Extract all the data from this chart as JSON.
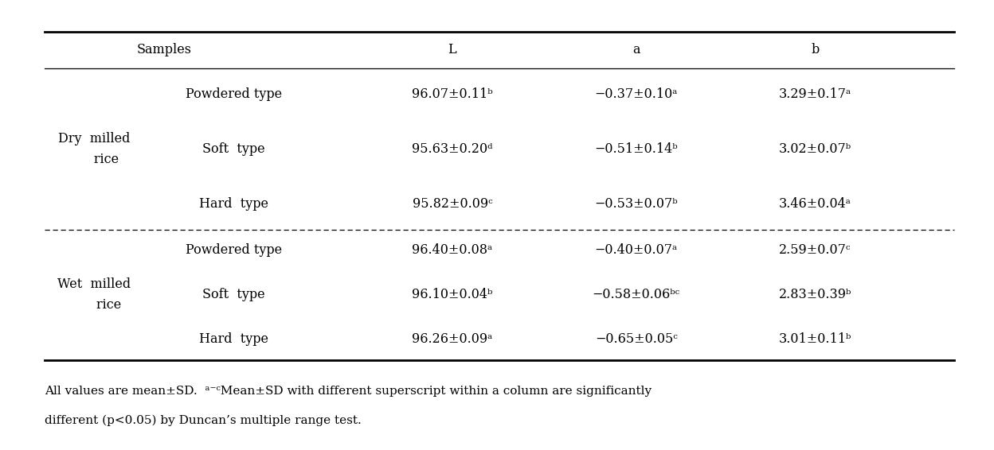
{
  "headers": [
    "Samples",
    "L",
    "a",
    "b"
  ],
  "col2_labels": [
    "Powdered type",
    "Soft  type",
    "Hard  type",
    "Powdered type",
    "Soft  type",
    "Hard  type"
  ],
  "L_values": [
    "96.07±0.11ᵇ",
    "95.63±0.20ᵈ",
    "95.82±0.09ᶜ",
    "96.40±0.08ᵃ",
    "96.10±0.04ᵇ",
    "96.26±0.09ᵃ"
  ],
  "a_values": [
    "−0.37±0.10ᵃ",
    "−0.51±0.14ᵇ",
    "−0.53±0.07ᵇ",
    "−0.40±0.07ᵃ",
    "−0.58±0.06ᵇᶜ",
    "−0.65±0.05ᶜ"
  ],
  "b_values": [
    "3.29±0.17ᵃ",
    "3.02±0.07ᵇ",
    "3.46±0.04ᵃ",
    "2.59±0.07ᶜ",
    "2.83±0.39ᵇ",
    "3.01±0.11ᵇ"
  ],
  "footnote_line1": "All values are mean±SD.  ᵃ⁻ᶜMean±SD with different superscript within a column are significantly",
  "footnote_line2": "different (p<0.05) by Duncan’s multiple range test.",
  "bg_color": "#ffffff",
  "text_color": "#000000",
  "font_size": 11.5
}
